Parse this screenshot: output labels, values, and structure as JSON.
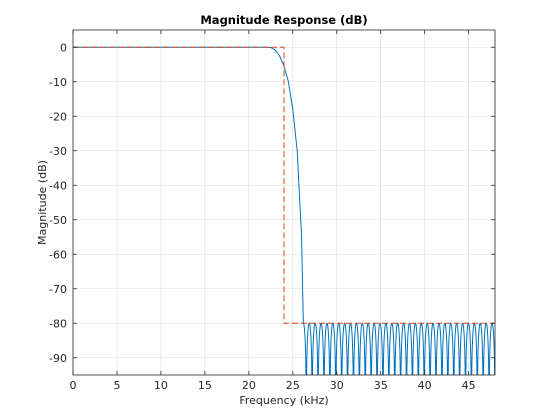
{
  "chart_data": {
    "type": "line",
    "title": "Magnitude Response (dB)",
    "xlabel": "Frequency (kHz)",
    "ylabel": "Magnitude (dB)",
    "xlim": [
      0,
      48
    ],
    "ylim": [
      -95,
      5
    ],
    "xticks": [
      0,
      5,
      10,
      15,
      20,
      25,
      30,
      35,
      40,
      45
    ],
    "yticks": [
      0,
      -10,
      -20,
      -30,
      -40,
      -50,
      -60,
      -70,
      -80,
      -90
    ],
    "grid": true,
    "legend": "none",
    "series": [
      {
        "role": "magnitude-response",
        "color": "#0072bd",
        "passband_edge_khz": 22.5,
        "transition_end_khz": 26.2,
        "stopband_ripple_peak_db": -80,
        "stopband_null_db": -95,
        "transition_points": [
          [
            0,
            0
          ],
          [
            22.0,
            0
          ],
          [
            22.5,
            -0.1
          ],
          [
            23.0,
            -0.8
          ],
          [
            23.5,
            -2.5
          ],
          [
            24.0,
            -5.5
          ],
          [
            24.5,
            -10
          ],
          [
            25.0,
            -18
          ],
          [
            25.5,
            -30
          ],
          [
            26.0,
            -55
          ],
          [
            26.2,
            -80
          ]
        ]
      },
      {
        "role": "specification-mask",
        "color": "#d9401a",
        "style": "dashed",
        "points": [
          [
            0,
            0
          ],
          [
            24.0,
            0
          ],
          [
            24.0,
            -80
          ],
          [
            25.0,
            -80
          ],
          [
            48,
            -80
          ]
        ]
      }
    ]
  }
}
